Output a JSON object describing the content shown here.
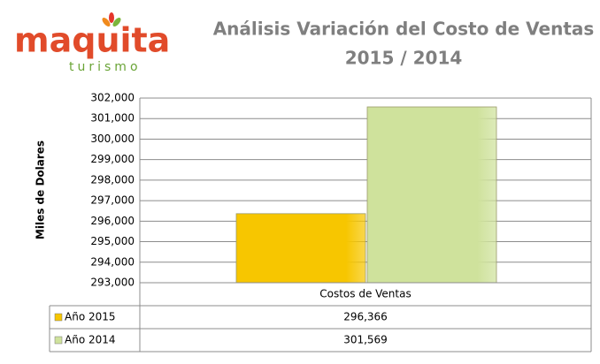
{
  "logo": {
    "name": "maquita",
    "tagline": "turismo"
  },
  "chart_data": {
    "type": "bar",
    "title": "Análisis Variación del Costo de Ventas",
    "subtitle": "2015 / 2014",
    "y_label": "Miles de Dolares",
    "categories": [
      "Costos de Ventas"
    ],
    "series": [
      {
        "name": "Año 2015",
        "color": "#f7c600",
        "values": [
          296366
        ],
        "value_labels": [
          "296,366"
        ]
      },
      {
        "name": "Año 2014",
        "color": "#cfe29c",
        "values": [
          301569
        ],
        "value_labels": [
          "301,569"
        ]
      }
    ],
    "ylim": [
      293000,
      302000
    ],
    "yticks": [
      {
        "value": 293000,
        "label": "293,000"
      },
      {
        "value": 294000,
        "label": "294,000"
      },
      {
        "value": 295000,
        "label": "295,000"
      },
      {
        "value": 296000,
        "label": "296,000"
      },
      {
        "value": 297000,
        "label": "297,000"
      },
      {
        "value": 298000,
        "label": "298,000"
      },
      {
        "value": 299000,
        "label": "299,000"
      },
      {
        "value": 300000,
        "label": "300,000"
      },
      {
        "value": 301000,
        "label": "301,000"
      },
      {
        "value": 302000,
        "label": "302,000"
      }
    ],
    "grid": true
  }
}
